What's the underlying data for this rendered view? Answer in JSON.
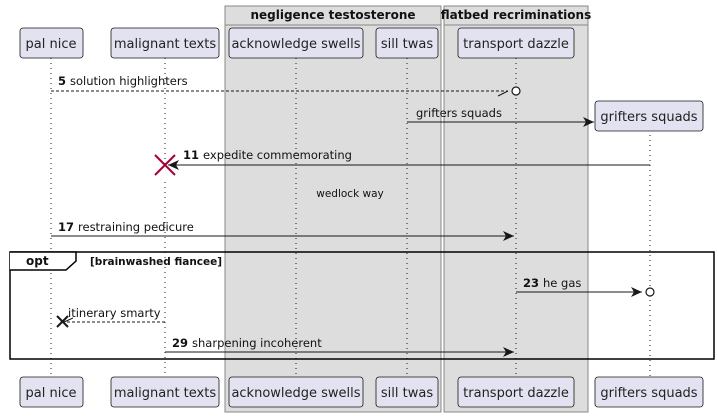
{
  "colors": {
    "participant_fill": "#e2e2f0",
    "participant_stroke": "#181818",
    "box_fill": "#dddddd",
    "box_stroke": "#888888",
    "line": "#181818",
    "destroy": "#a80036"
  },
  "boxes": [
    {
      "title": "negligence testosterone"
    },
    {
      "title": "flatbed recriminations"
    }
  ],
  "participants": [
    {
      "name": "pal nice"
    },
    {
      "name": "malignant texts"
    },
    {
      "name": "acknowledge swells"
    },
    {
      "name": "sill twas"
    },
    {
      "name": "transport dazzle"
    },
    {
      "name": "grifters squads"
    }
  ],
  "messages": [
    {
      "num": "5",
      "text": "solution highlighters"
    },
    {
      "num": "",
      "text": "grifters squads"
    },
    {
      "num": "11",
      "text": "expedite commemorating"
    },
    {
      "num": "17",
      "text": "restraining pedicure"
    },
    {
      "num": "23",
      "text": "he gas"
    },
    {
      "num": "",
      "text": "itinerary smarty"
    },
    {
      "num": "29",
      "text": "sharpening incoherent"
    }
  ],
  "separator": {
    "text": "wedlock way"
  },
  "fragment": {
    "keyword": "opt",
    "guard": "[brainwashed fiancee]"
  }
}
